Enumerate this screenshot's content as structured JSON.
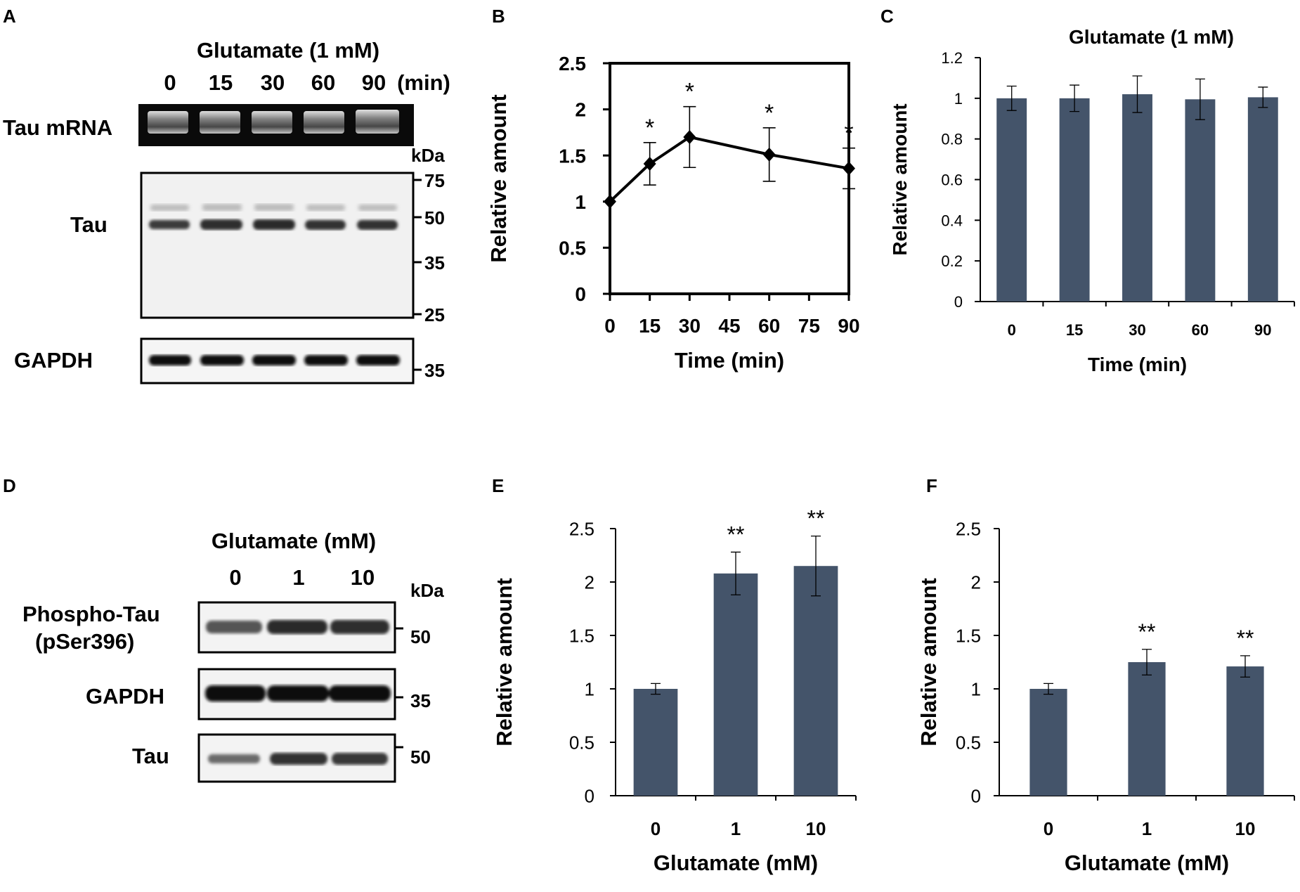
{
  "figure": {
    "panel_labels": {
      "A": "A",
      "B": "B",
      "C": "C",
      "D": "D",
      "E": "E",
      "F": "F"
    }
  },
  "blot_a": {
    "header": "Glutamate (1 mM)",
    "lanes": [
      "0",
      "15",
      "30",
      "60",
      "90"
    ],
    "unit": "(min)",
    "row_labels": {
      "mrna": "Tau mRNA",
      "tau": "Tau",
      "gapdh": "GAPDH"
    },
    "kda_label": "kDa",
    "markers_tau": [
      "75",
      "50",
      "35",
      "25"
    ],
    "marker_gapdh": "35"
  },
  "blot_d": {
    "header": "Glutamate (mM)",
    "lanes": [
      "0",
      "1",
      "10"
    ],
    "kda_label": "kDa",
    "row_labels": {
      "phospho_line1": "Phospho-Tau",
      "phospho_line2": "(pSer396)",
      "gapdh": "GAPDH",
      "tau": "Tau"
    },
    "markers": [
      "50",
      "35",
      "50"
    ]
  },
  "chart_data": [
    {
      "id": "B",
      "type": "line",
      "title": "",
      "xlabel": "Time (min)",
      "ylabel": "Relative amount",
      "x": [
        0,
        15,
        30,
        60,
        90
      ],
      "values": [
        1.0,
        1.41,
        1.7,
        1.51,
        1.36
      ],
      "errors": [
        0.0,
        0.23,
        0.33,
        0.29,
        0.22
      ],
      "significance": [
        "",
        "*",
        "*",
        "*",
        "*"
      ],
      "xlim": [
        0,
        90
      ],
      "xticks": [
        "0",
        "15",
        "30",
        "45",
        "60",
        "75",
        "90"
      ],
      "ylim": [
        0,
        2.5
      ],
      "yticks": [
        "0",
        "0.5",
        "1",
        "1.5",
        "2",
        "2.5"
      ],
      "color": "#000000"
    },
    {
      "id": "C",
      "type": "bar",
      "title": "Glutamate (1 mM)",
      "xlabel": "Time (min)",
      "ylabel": "Relative amount",
      "categories": [
        "0",
        "15",
        "30",
        "60",
        "90"
      ],
      "values": [
        1.0,
        1.0,
        1.02,
        0.995,
        1.005
      ],
      "errors": [
        0.06,
        0.065,
        0.09,
        0.1,
        0.05
      ],
      "ylim": [
        0,
        1.2
      ],
      "yticks": [
        "0",
        "0.2",
        "0.4",
        "0.6",
        "0.8",
        "1",
        "1.2"
      ],
      "color": "#44546a"
    },
    {
      "id": "E",
      "type": "bar",
      "title": "",
      "xlabel": "Glutamate (mM)",
      "ylabel": "Relative amount",
      "categories": [
        "0",
        "1",
        "10"
      ],
      "values": [
        1.0,
        2.08,
        2.15
      ],
      "errors": [
        0.05,
        0.2,
        0.28
      ],
      "significance": [
        "",
        "**",
        "**"
      ],
      "ylim": [
        0,
        2.5
      ],
      "yticks": [
        "0",
        "0.5",
        "1",
        "1.5",
        "2",
        "2.5"
      ],
      "color": "#44546a"
    },
    {
      "id": "F",
      "type": "bar",
      "title": "",
      "xlabel": "Glutamate (mM)",
      "ylabel": "Relative amount",
      "categories": [
        "0",
        "1",
        "10"
      ],
      "values": [
        1.0,
        1.25,
        1.21
      ],
      "errors": [
        0.05,
        0.12,
        0.1
      ],
      "significance": [
        "",
        "**",
        "**"
      ],
      "ylim": [
        0,
        2.5
      ],
      "yticks": [
        "0",
        "0.5",
        "1",
        "1.5",
        "2",
        "2.5"
      ],
      "color": "#44546a"
    }
  ]
}
